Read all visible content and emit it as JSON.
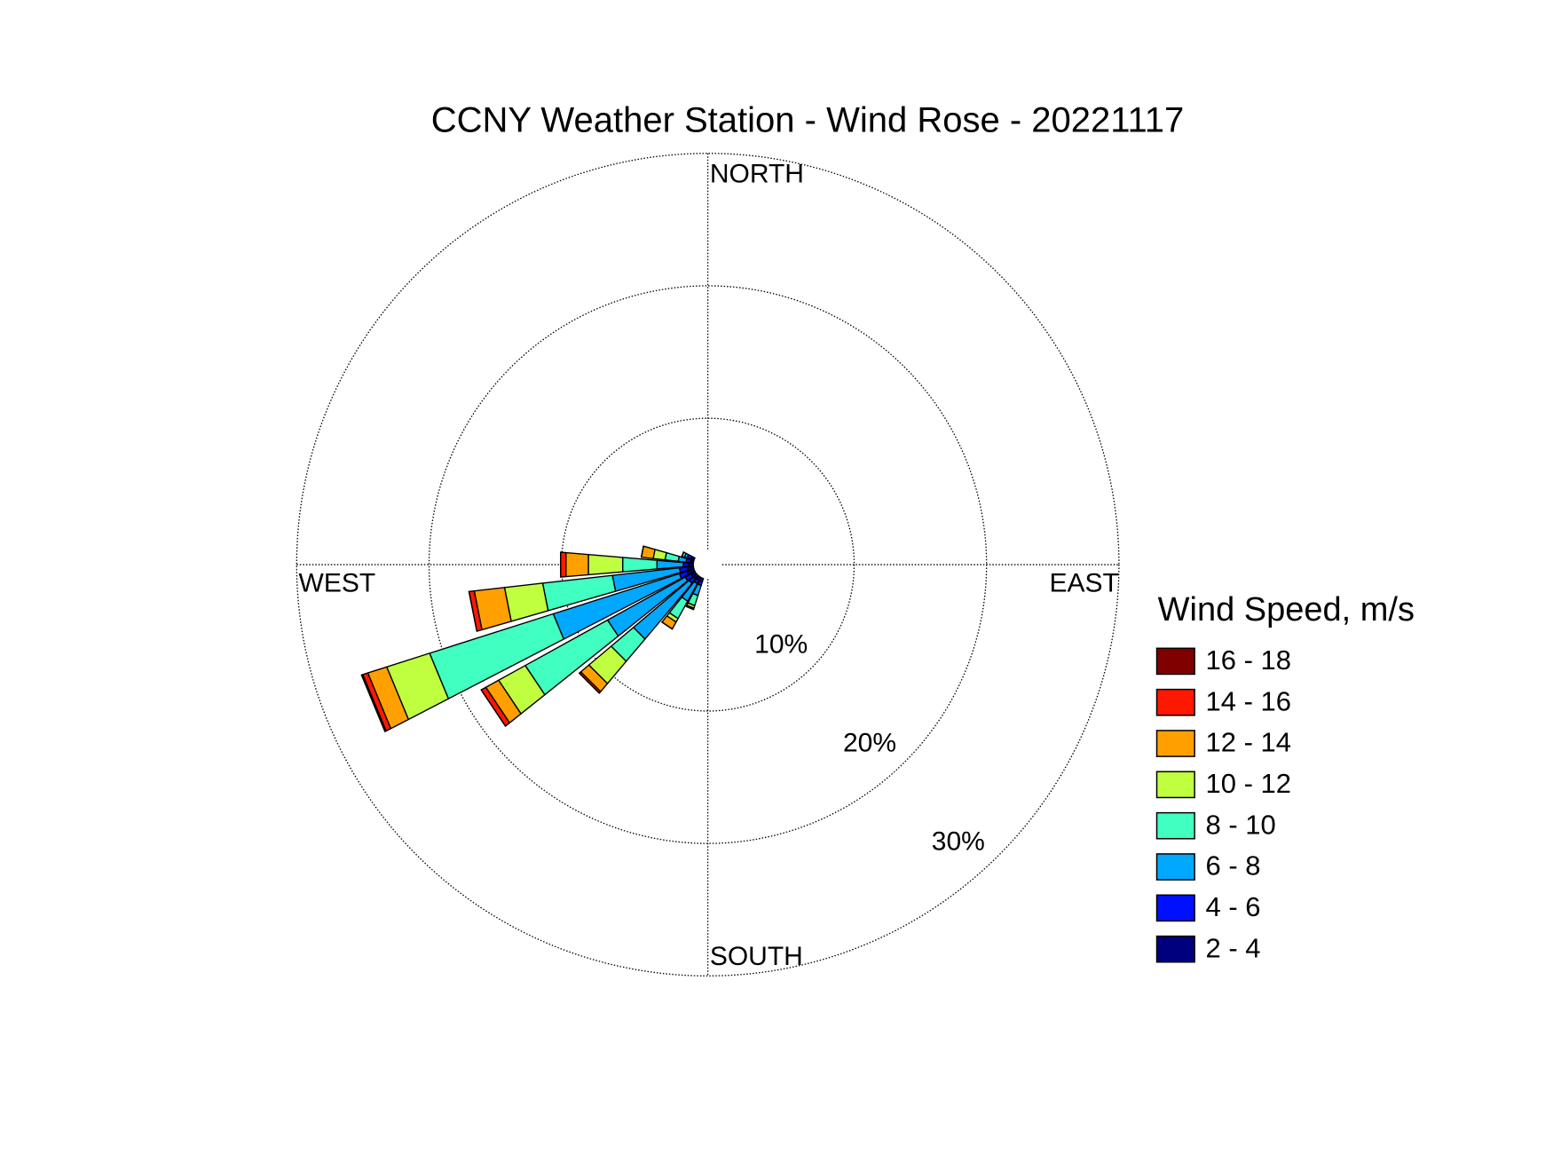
{
  "chart_data": {
    "type": "windrose",
    "title": "CCNY Weather Station - Wind Rose - 20221117",
    "compass_labels": [
      "NORTH",
      "EAST",
      "SOUTH",
      "WEST"
    ],
    "legend_title": "Wind Speed, m/s",
    "directions": [
      202.5,
      213.75,
      225,
      236.25,
      247.5,
      258.75,
      270,
      281.25,
      292.5
    ],
    "rlim": [
      0,
      30
    ],
    "rticks": [
      {
        "value": 10,
        "label": "10%"
      },
      {
        "value": 20,
        "label": "20%"
      },
      {
        "value": 30,
        "label": "30%"
      }
    ],
    "grid": true,
    "series": [
      {
        "name": "2 - 4",
        "color": "#00007f",
        "values": [
          0.3,
          0.3,
          0.4,
          0.4,
          0.6,
          0.5,
          0.4,
          0.3,
          0.3
        ]
      },
      {
        "name": "4 - 6",
        "color": "#0010ff",
        "values": [
          0.3,
          0.3,
          0.4,
          0.5,
          0.6,
          0.6,
          0.4,
          0.3,
          0.3
        ]
      },
      {
        "name": "6 - 8",
        "color": "#00a8ff",
        "values": [
          0.8,
          1.5,
          5.5,
          6.7,
          10.0,
          5.1,
          2.0,
          0.6,
          0.2
        ]
      },
      {
        "name": "8 - 10",
        "color": "#40ffc0",
        "values": [
          0.8,
          1.5,
          2.2,
          7.1,
          9.8,
          5.3,
          2.6,
          1.0,
          0.2
        ]
      },
      {
        "name": "10 - 12",
        "color": "#c0ff40",
        "values": [
          0.2,
          0.3,
          2.2,
          2.3,
          3.4,
          2.9,
          2.6,
          0.9,
          0
        ]
      },
      {
        "name": "12 - 14",
        "color": "#ffa000",
        "values": [
          0.1,
          0.6,
          0.8,
          1.1,
          1.5,
          2.3,
          1.7,
          0.9,
          0
        ]
      },
      {
        "name": "14 - 16",
        "color": "#ff1800",
        "values": [
          0,
          0,
          0.15,
          0.4,
          0.4,
          0.4,
          0.4,
          0,
          0
        ]
      },
      {
        "name": "16 - 18",
        "color": "#800000",
        "values": [
          0,
          0,
          0,
          0,
          0.1,
          0,
          0,
          0,
          0
        ]
      }
    ]
  }
}
